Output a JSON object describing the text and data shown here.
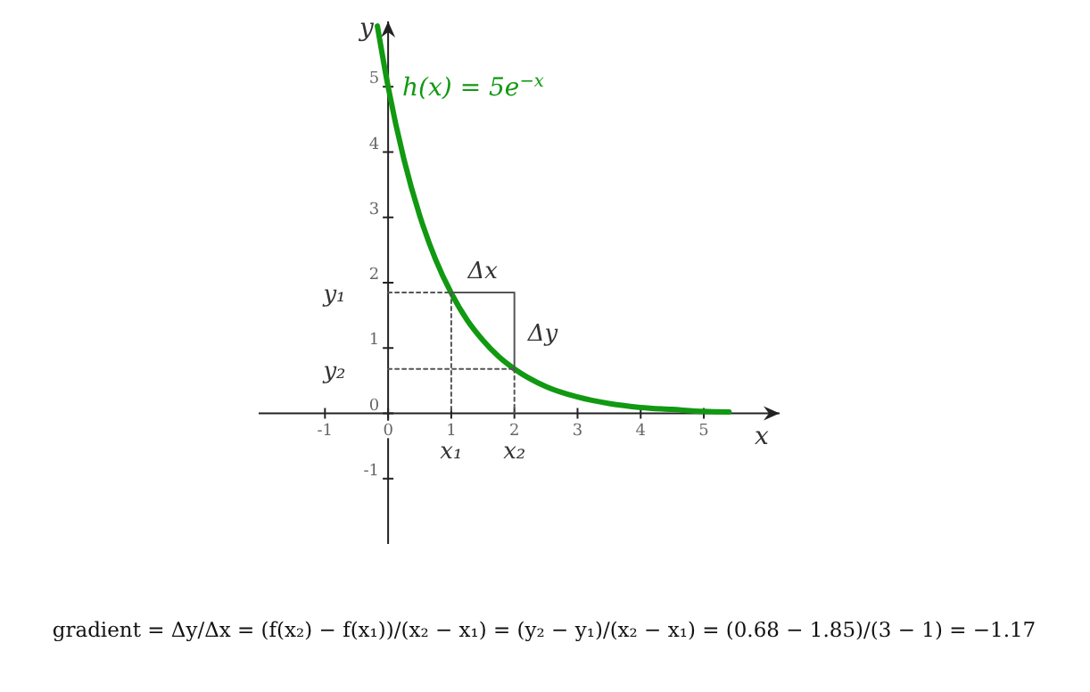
{
  "chart_data": {
    "type": "line",
    "xlabel": "x",
    "ylabel": "y",
    "xlim": [
      -2.05,
      6.2
    ],
    "ylim": [
      -2.0,
      6.0
    ],
    "xticks": [
      -1,
      0,
      1,
      2,
      3,
      4,
      5
    ],
    "yticks": [
      -1,
      0,
      1,
      2,
      3,
      4,
      5
    ],
    "grid": false,
    "marker": "none",
    "series": [
      {
        "name": "h(x) = 5e$^{−x}$",
        "color": "#119911",
        "x": [
          -0.17,
          0,
          0.25,
          0.5,
          0.75,
          1,
          1.25,
          1.5,
          1.75,
          2,
          2.5,
          3,
          3.5,
          4,
          4.5,
          5,
          5.4
        ],
        "values": [
          5.93,
          5,
          3.89,
          3.03,
          2.36,
          1.84,
          1.43,
          1.12,
          0.87,
          0.68,
          0.41,
          0.25,
          0.15,
          0.09,
          0.06,
          0.03,
          0.02
        ]
      },
      {
        "color": "#555555",
        "line_style": "dotted",
        "x": [
          0,
          1
        ],
        "values": [
          1.85,
          1.85
        ]
      },
      {
        "color": "#555555",
        "line_style": "dotted",
        "x": [
          1,
          1
        ],
        "values": [
          1.85,
          0
        ]
      },
      {
        "color": "#555555",
        "line_style": "dotted",
        "x": [
          0,
          2
        ],
        "values": [
          0.68,
          0.68
        ]
      },
      {
        "color": "#555555",
        "line_style": "dotted",
        "x": [
          2,
          2
        ],
        "values": [
          0.68,
          0
        ]
      },
      {
        "color": "#555555",
        "line_style": "solid",
        "x": [
          1,
          2,
          2
        ],
        "values": [
          1.85,
          1.85,
          0.68
        ]
      }
    ],
    "annotations": [
      "Δx",
      "Δy",
      "x₁",
      "x₂",
      "y₁",
      "y₂",
      "gradient = Δy/Δx = (f(x₂) − f(x₁))/(x₂ − x₁) = (y₂ − y₁)/(x₂ − x₁) = (0.68 − 1.85)/(3 − 1) = −1.17"
    ]
  }
}
